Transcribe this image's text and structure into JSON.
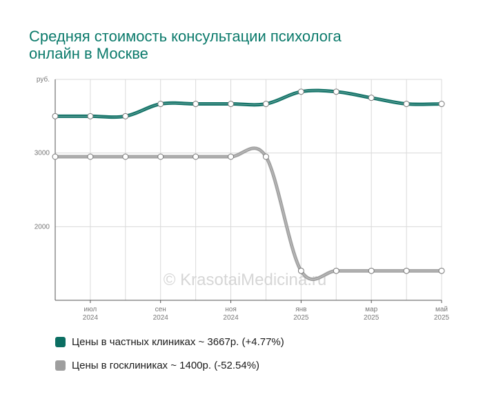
{
  "header": {
    "title_line1": "Средняя стоимость консультации психолога",
    "title_line2": "онлайн в Москве"
  },
  "watermark": "© KrasotaiMedicina.ru",
  "chart_data": {
    "type": "line",
    "ylabel": "руб.",
    "ylim": [
      1000,
      4000
    ],
    "yticks": [
      {
        "value": 4000,
        "label": "руб."
      },
      {
        "value": 3000,
        "label": "3000"
      },
      {
        "value": 2000,
        "label": "2000"
      }
    ],
    "x": [
      "2024-06",
      "2024-07",
      "2024-08",
      "2024-09",
      "2024-10",
      "2024-11",
      "2024-12",
      "2025-01",
      "2025-02",
      "2025-03",
      "2025-04",
      "2025-05"
    ],
    "xticks": [
      {
        "index": 1,
        "line1": "июл",
        "line2": "2024"
      },
      {
        "index": 3,
        "line1": "сен",
        "line2": "2024"
      },
      {
        "index": 5,
        "line1": "ноя",
        "line2": "2024"
      },
      {
        "index": 7,
        "line1": "янв",
        "line2": "2025"
      },
      {
        "index": 9,
        "line1": "мар",
        "line2": "2025"
      },
      {
        "index": 11,
        "line1": "май",
        "line2": "2025"
      }
    ],
    "grid": true,
    "legend_position": "bottom",
    "series": [
      {
        "name": "Цены в частных клиниках ~ 3667р. (+4.77%)",
        "color": "#0b6e62",
        "values": [
          3500,
          3500,
          3500,
          3667,
          3667,
          3667,
          3667,
          3833,
          3833,
          3750,
          3667,
          3667
        ]
      },
      {
        "name": "Цены в госклиниках ~ 1400р. (-52.54%)",
        "color": "#9e9e9e",
        "values": [
          2950,
          2950,
          2950,
          2950,
          2950,
          2950,
          2950,
          1400,
          1400,
          1400,
          1400,
          1400
        ]
      }
    ]
  }
}
